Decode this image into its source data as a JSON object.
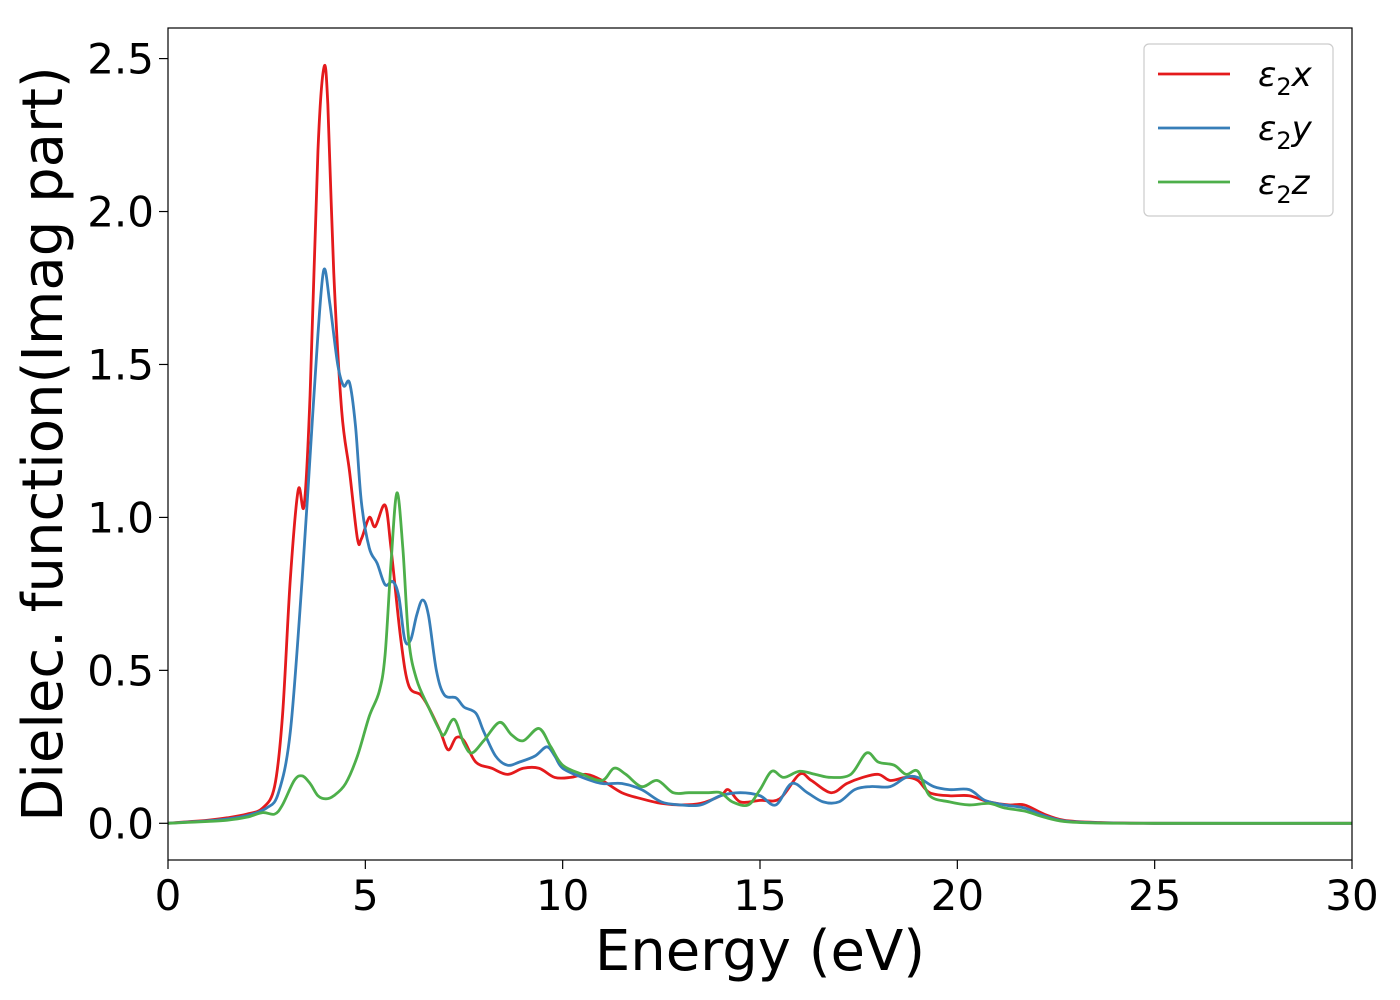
{
  "chart_data": {
    "type": "line",
    "xlabel": "Energy (eV)",
    "ylabel": "Dielec. function(Imag part)",
    "xlim": [
      0,
      30
    ],
    "ylim": [
      -0.12,
      2.6
    ],
    "xticks": [
      0,
      5,
      10,
      15,
      20,
      25,
      30
    ],
    "xtick_labels": [
      "0",
      "5",
      "10",
      "15",
      "20",
      "25",
      "30"
    ],
    "yticks": [
      0.0,
      0.5,
      1.0,
      1.5,
      2.0,
      2.5
    ],
    "ytick_labels": [
      "0.0",
      "0.5",
      "1.0",
      "1.5",
      "2.0",
      "2.5"
    ],
    "grid": false,
    "legend_position": "top-right",
    "series": [
      {
        "name": "ε2x",
        "legend_base": "ε",
        "legend_sub": "2",
        "legend_tail": "x",
        "color": "#e41a1c",
        "points": [
          [
            0,
            0.0
          ],
          [
            0.5,
            0.005
          ],
          [
            1,
            0.01
          ],
          [
            1.5,
            0.018
          ],
          [
            2,
            0.03
          ],
          [
            2.4,
            0.05
          ],
          [
            2.7,
            0.12
          ],
          [
            2.9,
            0.35
          ],
          [
            3.1,
            0.8
          ],
          [
            3.3,
            1.09
          ],
          [
            3.45,
            1.04
          ],
          [
            3.6,
            1.4
          ],
          [
            3.8,
            2.2
          ],
          [
            3.95,
            2.47
          ],
          [
            4.05,
            2.35
          ],
          [
            4.2,
            1.8
          ],
          [
            4.4,
            1.35
          ],
          [
            4.6,
            1.15
          ],
          [
            4.8,
            0.93
          ],
          [
            4.9,
            0.93
          ],
          [
            5.1,
            1.0
          ],
          [
            5.25,
            0.97
          ],
          [
            5.5,
            1.04
          ],
          [
            5.65,
            0.9
          ],
          [
            5.9,
            0.6
          ],
          [
            6.1,
            0.45
          ],
          [
            6.4,
            0.42
          ],
          [
            6.6,
            0.38
          ],
          [
            6.9,
            0.3
          ],
          [
            7.1,
            0.24
          ],
          [
            7.3,
            0.28
          ],
          [
            7.5,
            0.27
          ],
          [
            7.8,
            0.2
          ],
          [
            8.2,
            0.18
          ],
          [
            8.6,
            0.16
          ],
          [
            9.0,
            0.18
          ],
          [
            9.4,
            0.18
          ],
          [
            9.8,
            0.15
          ],
          [
            10.2,
            0.15
          ],
          [
            10.6,
            0.16
          ],
          [
            11.0,
            0.14
          ],
          [
            11.5,
            0.1
          ],
          [
            12.0,
            0.08
          ],
          [
            12.5,
            0.065
          ],
          [
            13.0,
            0.06
          ],
          [
            13.5,
            0.065
          ],
          [
            14.0,
            0.09
          ],
          [
            14.2,
            0.11
          ],
          [
            14.5,
            0.07
          ],
          [
            15.0,
            0.075
          ],
          [
            15.5,
            0.08
          ],
          [
            16.0,
            0.16
          ],
          [
            16.3,
            0.14
          ],
          [
            16.8,
            0.1
          ],
          [
            17.2,
            0.13
          ],
          [
            17.6,
            0.15
          ],
          [
            18.0,
            0.16
          ],
          [
            18.3,
            0.14
          ],
          [
            18.7,
            0.15
          ],
          [
            19.0,
            0.14
          ],
          [
            19.3,
            0.1
          ],
          [
            19.8,
            0.09
          ],
          [
            20.3,
            0.09
          ],
          [
            20.8,
            0.07
          ],
          [
            21.3,
            0.06
          ],
          [
            21.7,
            0.06
          ],
          [
            22.2,
            0.03
          ],
          [
            22.7,
            0.01
          ],
          [
            23.5,
            0.003
          ],
          [
            25,
            0.0
          ],
          [
            30,
            0.0
          ]
        ]
      },
      {
        "name": "ε2y",
        "legend_base": "ε",
        "legend_sub": "2",
        "legend_tail": "y",
        "color": "#377eb8",
        "points": [
          [
            0,
            0.0
          ],
          [
            0.5,
            0.004
          ],
          [
            1,
            0.008
          ],
          [
            1.5,
            0.014
          ],
          [
            2,
            0.025
          ],
          [
            2.5,
            0.05
          ],
          [
            2.8,
            0.1
          ],
          [
            3.1,
            0.3
          ],
          [
            3.4,
            0.8
          ],
          [
            3.6,
            1.2
          ],
          [
            3.8,
            1.6
          ],
          [
            3.95,
            1.81
          ],
          [
            4.1,
            1.7
          ],
          [
            4.3,
            1.5
          ],
          [
            4.45,
            1.43
          ],
          [
            4.6,
            1.44
          ],
          [
            4.75,
            1.3
          ],
          [
            4.9,
            1.05
          ],
          [
            5.1,
            0.9
          ],
          [
            5.3,
            0.85
          ],
          [
            5.5,
            0.78
          ],
          [
            5.7,
            0.79
          ],
          [
            5.85,
            0.74
          ],
          [
            6.0,
            0.6
          ],
          [
            6.15,
            0.6
          ],
          [
            6.3,
            0.68
          ],
          [
            6.45,
            0.73
          ],
          [
            6.6,
            0.68
          ],
          [
            6.8,
            0.5
          ],
          [
            7.0,
            0.42
          ],
          [
            7.3,
            0.41
          ],
          [
            7.5,
            0.38
          ],
          [
            7.8,
            0.36
          ],
          [
            8.0,
            0.3
          ],
          [
            8.3,
            0.22
          ],
          [
            8.6,
            0.19
          ],
          [
            8.9,
            0.2
          ],
          [
            9.3,
            0.22
          ],
          [
            9.6,
            0.25
          ],
          [
            9.8,
            0.22
          ],
          [
            10.0,
            0.18
          ],
          [
            10.5,
            0.15
          ],
          [
            11.0,
            0.13
          ],
          [
            11.5,
            0.13
          ],
          [
            12.0,
            0.11
          ],
          [
            12.5,
            0.07
          ],
          [
            13.0,
            0.06
          ],
          [
            13.5,
            0.06
          ],
          [
            14.0,
            0.09
          ],
          [
            14.5,
            0.1
          ],
          [
            15.0,
            0.09
          ],
          [
            15.4,
            0.06
          ],
          [
            15.8,
            0.13
          ],
          [
            16.2,
            0.1
          ],
          [
            16.6,
            0.07
          ],
          [
            17.0,
            0.07
          ],
          [
            17.4,
            0.11
          ],
          [
            17.8,
            0.12
          ],
          [
            18.3,
            0.12
          ],
          [
            18.7,
            0.15
          ],
          [
            19.0,
            0.15
          ],
          [
            19.4,
            0.12
          ],
          [
            19.8,
            0.11
          ],
          [
            20.3,
            0.11
          ],
          [
            20.7,
            0.075
          ],
          [
            21.2,
            0.06
          ],
          [
            21.7,
            0.05
          ],
          [
            22.2,
            0.025
          ],
          [
            22.7,
            0.008
          ],
          [
            23.5,
            0.002
          ],
          [
            25,
            0.0
          ],
          [
            30,
            0.0
          ]
        ]
      },
      {
        "name": "ε2z",
        "legend_base": "ε",
        "legend_sub": "2",
        "legend_tail": "z",
        "color": "#4daf4a",
        "points": [
          [
            0,
            0.0
          ],
          [
            0.5,
            0.003
          ],
          [
            1,
            0.006
          ],
          [
            1.5,
            0.01
          ],
          [
            2,
            0.02
          ],
          [
            2.4,
            0.035
          ],
          [
            2.7,
            0.03
          ],
          [
            2.9,
            0.06
          ],
          [
            3.2,
            0.14
          ],
          [
            3.4,
            0.155
          ],
          [
            3.6,
            0.13
          ],
          [
            3.8,
            0.09
          ],
          [
            4.0,
            0.08
          ],
          [
            4.2,
            0.09
          ],
          [
            4.5,
            0.13
          ],
          [
            4.8,
            0.22
          ],
          [
            5.1,
            0.35
          ],
          [
            5.35,
            0.43
          ],
          [
            5.5,
            0.55
          ],
          [
            5.65,
            0.85
          ],
          [
            5.8,
            1.08
          ],
          [
            5.95,
            0.9
          ],
          [
            6.1,
            0.6
          ],
          [
            6.3,
            0.47
          ],
          [
            6.6,
            0.38
          ],
          [
            6.9,
            0.3
          ],
          [
            7.0,
            0.29
          ],
          [
            7.25,
            0.34
          ],
          [
            7.5,
            0.26
          ],
          [
            7.7,
            0.23
          ],
          [
            8.0,
            0.27
          ],
          [
            8.4,
            0.33
          ],
          [
            8.7,
            0.29
          ],
          [
            9.0,
            0.27
          ],
          [
            9.4,
            0.31
          ],
          [
            9.7,
            0.25
          ],
          [
            10.0,
            0.19
          ],
          [
            10.5,
            0.16
          ],
          [
            11.0,
            0.14
          ],
          [
            11.3,
            0.18
          ],
          [
            11.6,
            0.16
          ],
          [
            12.0,
            0.12
          ],
          [
            12.4,
            0.14
          ],
          [
            12.8,
            0.1
          ],
          [
            13.2,
            0.1
          ],
          [
            13.7,
            0.1
          ],
          [
            14.0,
            0.1
          ],
          [
            14.3,
            0.07
          ],
          [
            14.7,
            0.06
          ],
          [
            15.0,
            0.11
          ],
          [
            15.3,
            0.17
          ],
          [
            15.6,
            0.15
          ],
          [
            16.0,
            0.17
          ],
          [
            16.4,
            0.16
          ],
          [
            16.8,
            0.15
          ],
          [
            17.3,
            0.16
          ],
          [
            17.7,
            0.23
          ],
          [
            18.0,
            0.2
          ],
          [
            18.4,
            0.19
          ],
          [
            18.7,
            0.16
          ],
          [
            19.0,
            0.17
          ],
          [
            19.3,
            0.09
          ],
          [
            19.8,
            0.07
          ],
          [
            20.3,
            0.06
          ],
          [
            20.8,
            0.065
          ],
          [
            21.2,
            0.05
          ],
          [
            21.7,
            0.04
          ],
          [
            22.2,
            0.02
          ],
          [
            22.7,
            0.006
          ],
          [
            23.5,
            0.001
          ],
          [
            25,
            0.0
          ],
          [
            30,
            0.0
          ]
        ]
      }
    ]
  }
}
